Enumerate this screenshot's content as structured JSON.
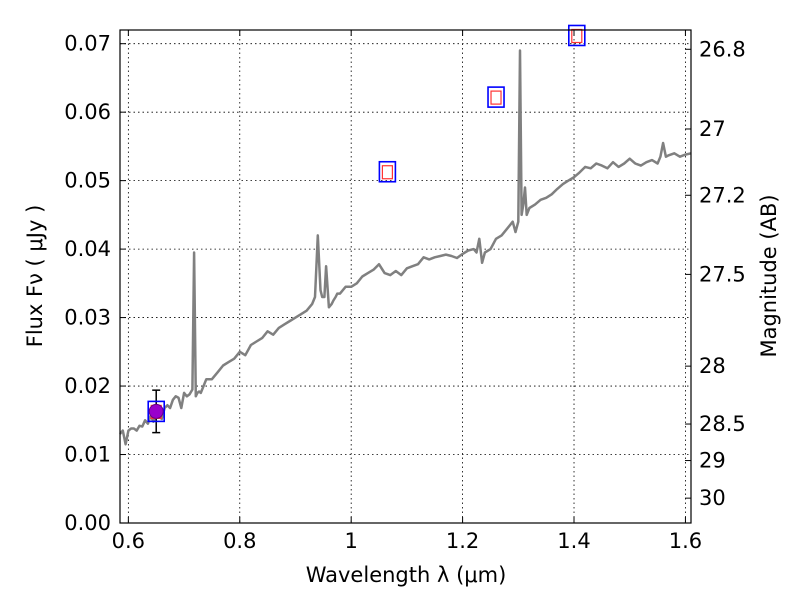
{
  "chart_data": {
    "type": "line",
    "xlabel": "Wavelength  λ (μm)",
    "ylabel": "Flux  Fν  ( μJy )",
    "y2label": "Magnitude (AB)",
    "xlim": [
      0.585,
      1.61
    ],
    "ylim": [
      0.0,
      0.072
    ],
    "xticks": [
      {
        "value": 0.6,
        "label": "0.6"
      },
      {
        "value": 0.8,
        "label": "0.8"
      },
      {
        "value": 1.0,
        "label": "1"
      },
      {
        "value": 1.2,
        "label": "1.2"
      },
      {
        "value": 1.4,
        "label": "1.4"
      },
      {
        "value": 1.6,
        "label": "1.6"
      }
    ],
    "yticks": [
      {
        "value": 0.0,
        "label": "0.00"
      },
      {
        "value": 0.01,
        "label": "0.01"
      },
      {
        "value": 0.02,
        "label": "0.02"
      },
      {
        "value": 0.03,
        "label": "0.03"
      },
      {
        "value": 0.04,
        "label": "0.04"
      },
      {
        "value": 0.05,
        "label": "0.05"
      },
      {
        "value": 0.06,
        "label": "0.06"
      },
      {
        "value": 0.07,
        "label": "0.07"
      }
    ],
    "y2ticks": [
      {
        "value": 26.8,
        "label": "26.8"
      },
      {
        "value": 27.0,
        "label": "27"
      },
      {
        "value": 27.2,
        "label": "27.2"
      },
      {
        "value": 27.5,
        "label": "27.5"
      },
      {
        "value": 28.0,
        "label": "28"
      },
      {
        "value": 28.5,
        "label": "28.5"
      },
      {
        "value": 29.0,
        "label": "29"
      },
      {
        "value": 30.0,
        "label": "30"
      }
    ],
    "grid": true,
    "colors": {
      "spectrum": "#808080",
      "model_box": "#0000ff",
      "photometry": "#ff3333",
      "observed": "#9900cc",
      "errorbar": "#000000"
    },
    "spectrum": {
      "x": [
        0.585,
        0.59,
        0.595,
        0.6,
        0.605,
        0.61,
        0.615,
        0.62,
        0.625,
        0.63,
        0.635,
        0.64,
        0.645,
        0.65,
        0.655,
        0.66,
        0.665,
        0.67,
        0.675,
        0.68,
        0.685,
        0.69,
        0.695,
        0.7,
        0.705,
        0.71,
        0.715,
        0.718,
        0.721,
        0.724,
        0.727,
        0.73,
        0.74,
        0.75,
        0.76,
        0.77,
        0.78,
        0.79,
        0.8,
        0.81,
        0.82,
        0.83,
        0.84,
        0.85,
        0.86,
        0.87,
        0.88,
        0.89,
        0.9,
        0.91,
        0.92,
        0.93,
        0.935,
        0.94,
        0.945,
        0.948,
        0.952,
        0.955,
        0.96,
        0.965,
        0.968,
        0.972,
        0.975,
        0.98,
        0.99,
        1.0,
        1.01,
        1.02,
        1.03,
        1.04,
        1.05,
        1.06,
        1.07,
        1.08,
        1.09,
        1.1,
        1.11,
        1.12,
        1.13,
        1.14,
        1.15,
        1.16,
        1.17,
        1.18,
        1.19,
        1.2,
        1.21,
        1.22,
        1.225,
        1.23,
        1.235,
        1.24,
        1.25,
        1.26,
        1.27,
        1.28,
        1.29,
        1.295,
        1.3,
        1.303,
        1.306,
        1.309,
        1.312,
        1.315,
        1.32,
        1.33,
        1.34,
        1.35,
        1.36,
        1.37,
        1.38,
        1.39,
        1.4,
        1.41,
        1.42,
        1.43,
        1.44,
        1.45,
        1.46,
        1.47,
        1.48,
        1.49,
        1.5,
        1.51,
        1.52,
        1.53,
        1.54,
        1.55,
        1.555,
        1.56,
        1.565,
        1.57,
        1.58,
        1.59,
        1.6,
        1.61
      ],
      "y": [
        0.013,
        0.0135,
        0.0115,
        0.0135,
        0.0138,
        0.0138,
        0.0135,
        0.0142,
        0.0141,
        0.015,
        0.0145,
        0.0157,
        0.0148,
        0.016,
        0.0155,
        0.0152,
        0.0168,
        0.0172,
        0.0168,
        0.018,
        0.0185,
        0.0183,
        0.0168,
        0.019,
        0.0185,
        0.0188,
        0.0195,
        0.0395,
        0.0185,
        0.019,
        0.0192,
        0.019,
        0.021,
        0.021,
        0.022,
        0.023,
        0.0235,
        0.024,
        0.025,
        0.0245,
        0.026,
        0.0265,
        0.027,
        0.028,
        0.0275,
        0.0285,
        0.029,
        0.0295,
        0.03,
        0.0305,
        0.031,
        0.032,
        0.033,
        0.042,
        0.034,
        0.033,
        0.033,
        0.0375,
        0.0315,
        0.032,
        0.0325,
        0.033,
        0.0335,
        0.0335,
        0.0345,
        0.0345,
        0.035,
        0.036,
        0.0365,
        0.037,
        0.0378,
        0.0365,
        0.0362,
        0.0368,
        0.0362,
        0.0372,
        0.0375,
        0.0378,
        0.0388,
        0.0385,
        0.0388,
        0.039,
        0.0392,
        0.039,
        0.0387,
        0.0393,
        0.0398,
        0.04,
        0.0395,
        0.0415,
        0.038,
        0.0395,
        0.04,
        0.0415,
        0.042,
        0.043,
        0.044,
        0.0425,
        0.044,
        0.069,
        0.045,
        0.0465,
        0.049,
        0.045,
        0.046,
        0.0465,
        0.0472,
        0.0475,
        0.048,
        0.0488,
        0.0495,
        0.05,
        0.0505,
        0.0512,
        0.052,
        0.0518,
        0.0525,
        0.0522,
        0.0518,
        0.0527,
        0.052,
        0.0525,
        0.0532,
        0.0525,
        0.0522,
        0.0527,
        0.053,
        0.0525,
        0.0535,
        0.0555,
        0.0535,
        0.0537,
        0.054,
        0.0535,
        0.0538,
        0.054
      ]
    },
    "model_photometry": {
      "x": [
        0.65,
        1.065,
        1.26,
        1.405
      ],
      "y": [
        0.0163,
        0.0513,
        0.0622,
        0.0712
      ]
    },
    "observed_point": {
      "x": 0.65,
      "y": 0.0163,
      "yerr": 0.0031
    }
  }
}
